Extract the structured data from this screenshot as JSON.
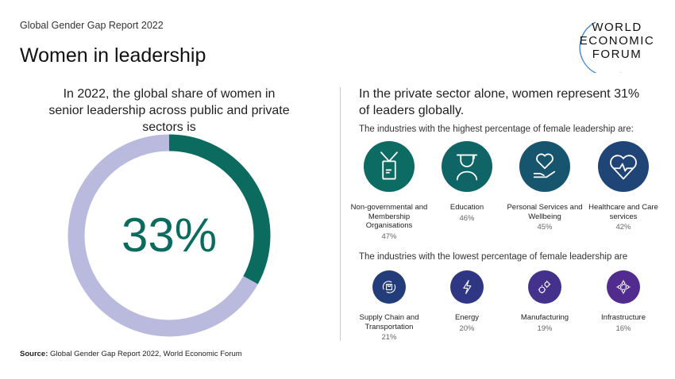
{
  "header": {
    "kicker": "Global Gender Gap Report 2022",
    "title": "Women in leadership"
  },
  "logo": {
    "lines": [
      "WORLD",
      "ECONOMIC",
      "FORUM"
    ],
    "arc_color": "#3b82d6"
  },
  "left": {
    "heading": "In 2022, the global share of women in senior leadership across public and private sectors is",
    "value_label": "33%"
  },
  "chart_data": {
    "type": "pie",
    "style": "donut",
    "categories": [
      "Women",
      "Other"
    ],
    "values": [
      33,
      67
    ],
    "colors": [
      "#0c6b5f",
      "#b9bade"
    ],
    "center_label": "33%"
  },
  "right": {
    "heading": "In the private sector alone, women represent 31% of leaders globally.",
    "highest_label": "The industries with the highest percentage of female leadership are:",
    "lowest_label": "The industries with the lowest percentage of female leadership are",
    "highest": [
      {
        "name": "Non-governmental and Membership Organisations",
        "pct": "47%",
        "icon": "id-badge-icon",
        "color": "#0c6b62"
      },
      {
        "name": "Education",
        "pct": "46%",
        "icon": "graduate-icon",
        "color": "#0f6566"
      },
      {
        "name": "Personal Services and Wellbeing",
        "pct": "45%",
        "icon": "heart-hand-icon",
        "color": "#17556f"
      },
      {
        "name": "Healthcare and Care services",
        "pct": "42%",
        "icon": "heartbeat-icon",
        "color": "#1f4577"
      }
    ],
    "lowest": [
      {
        "name": "Supply Chain and Transportation",
        "pct": "21%",
        "icon": "box-cycle-icon",
        "color": "#233d7a"
      },
      {
        "name": "Energy",
        "pct": "20%",
        "icon": "lightning-icon",
        "color": "#2f3785"
      },
      {
        "name": "Manufacturing",
        "pct": "19%",
        "icon": "gears-icon",
        "color": "#43318c"
      },
      {
        "name": "Infrastructure",
        "pct": "16%",
        "icon": "network-icon",
        "color": "#512c8e"
      }
    ]
  },
  "source": {
    "label": "Source:",
    "text": "Global Gender Gap Report 2022, World Economic Forum"
  }
}
